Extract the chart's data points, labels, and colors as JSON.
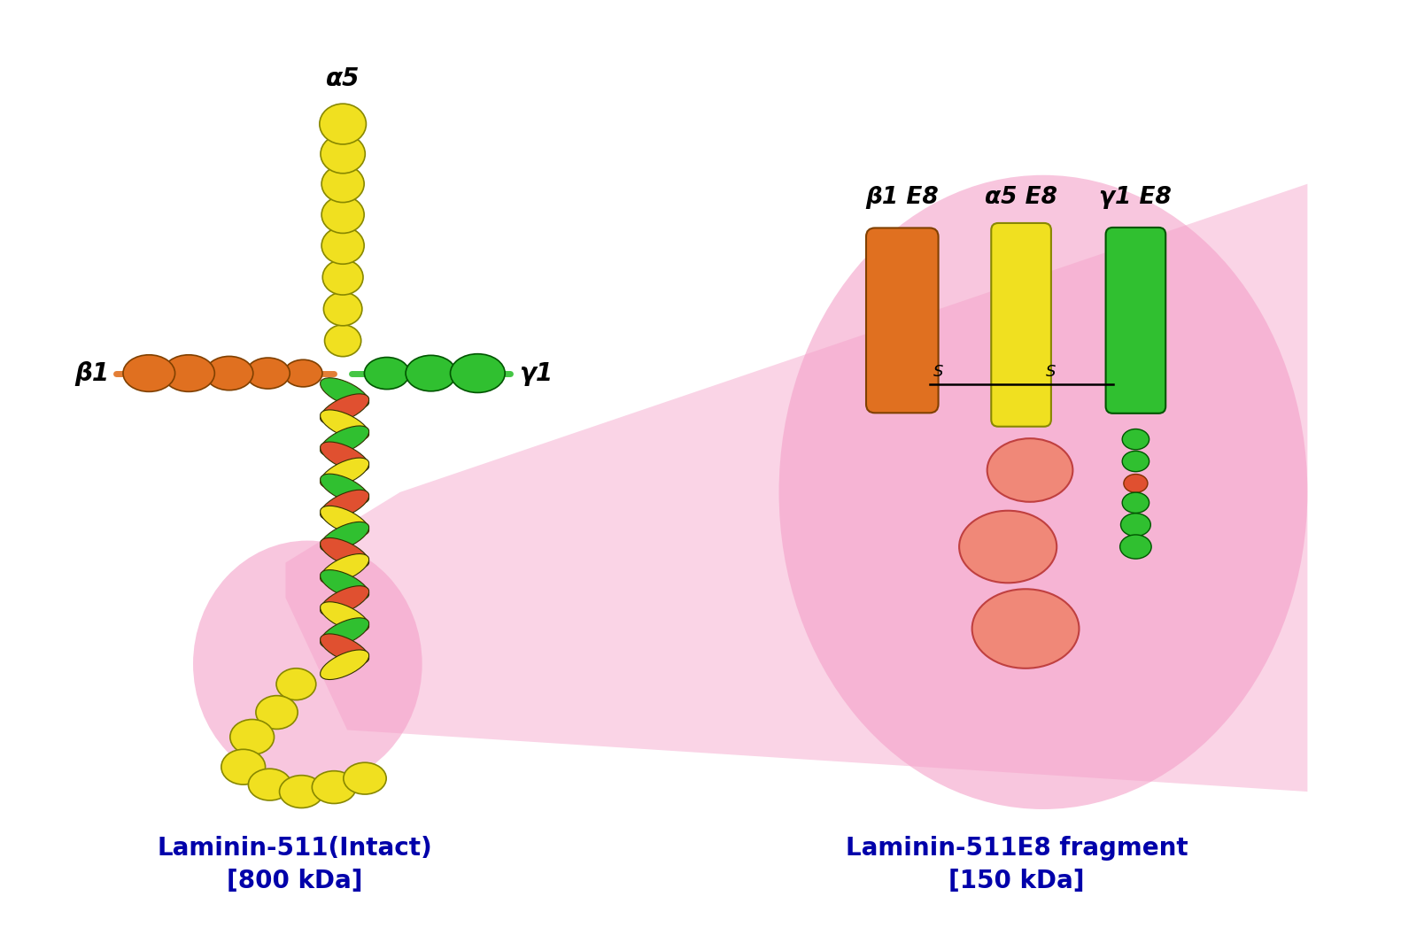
{
  "background_color": "#ffffff",
  "pink_fill": "#f4a0c8",
  "colors": {
    "yellow": "#f0e020",
    "orange": "#e07020",
    "green": "#30c030",
    "red_orange": "#e05030",
    "pink_ball": "#f08878"
  },
  "label_intact": "Laminin-511(Intact)\n[800 kDa]",
  "label_e8": "Laminin-511E8 fragment\n[150 kDa]",
  "alpha5_label": "α5",
  "beta1_label": "β1",
  "gamma1_label": "γ1",
  "beta1_e8_label": "β1 E8",
  "alpha5_e8_label": "α5 E8",
  "gamma1_e8_label": "γ1 E8"
}
